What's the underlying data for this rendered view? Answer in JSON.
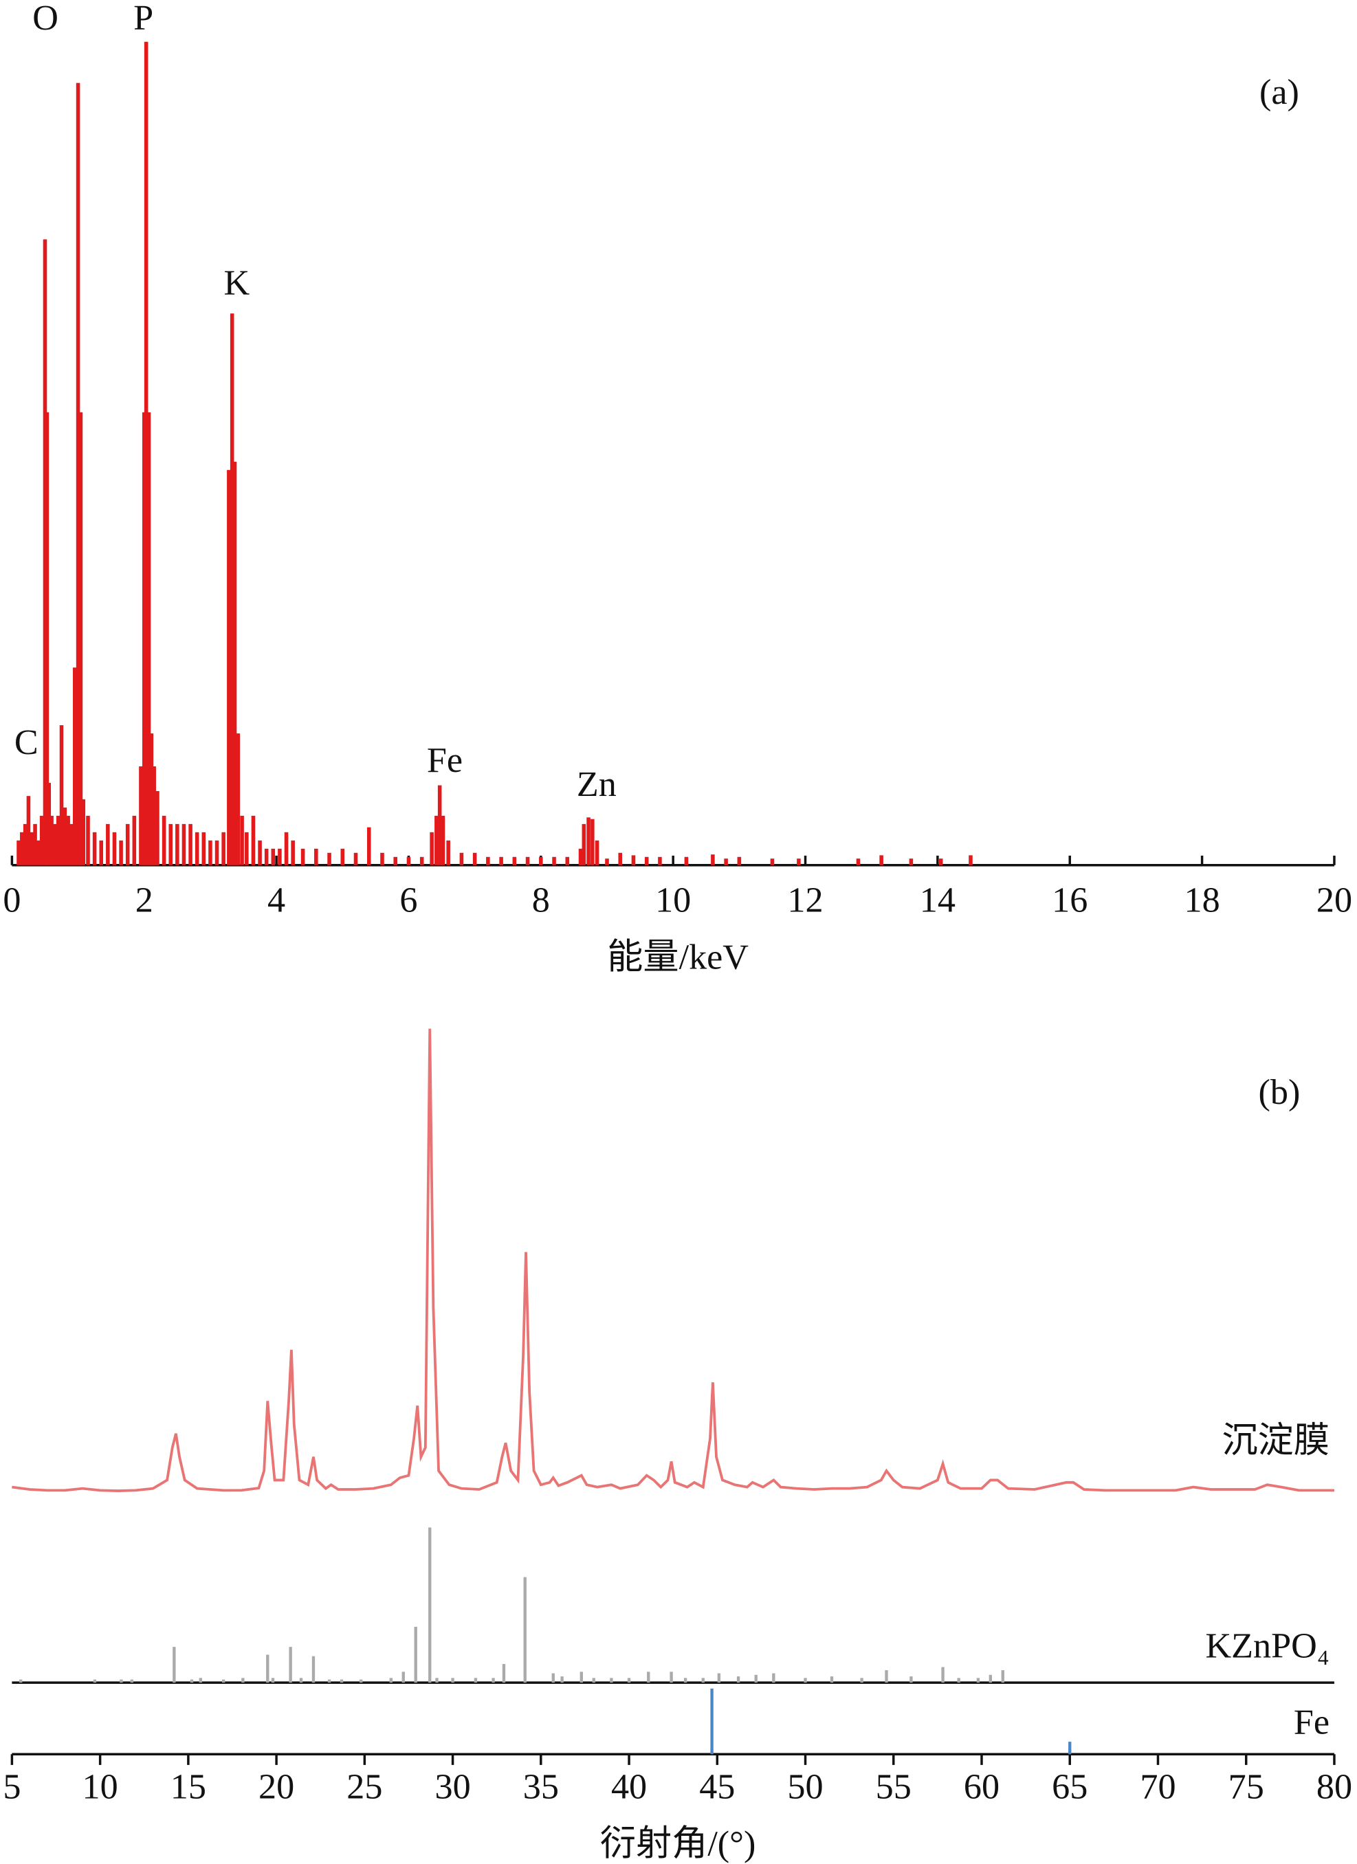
{
  "chart_data": [
    {
      "type": "bar",
      "label": "(a)",
      "xlabel": "能量/keV",
      "annotations": [
        "C",
        "O",
        "P",
        "K",
        "Fe",
        "Zn"
      ],
      "color": "#e31a1c",
      "xlim": [
        0,
        20
      ],
      "ylim": [
        0,
        100
      ],
      "xticks": [
        0,
        2,
        4,
        6,
        8,
        10,
        12,
        14,
        16,
        18,
        20
      ],
      "x": [
        0.1,
        0.15,
        0.2,
        0.25,
        0.3,
        0.35,
        0.4,
        0.45,
        0.5,
        0.53,
        0.56,
        0.6,
        0.65,
        0.7,
        0.75,
        0.8,
        0.85,
        0.9,
        0.95,
        1.0,
        1.04,
        1.08,
        1.15,
        1.25,
        1.35,
        1.45,
        1.55,
        1.65,
        1.75,
        1.85,
        1.95,
        2.0,
        2.03,
        2.07,
        2.11,
        2.15,
        2.2,
        2.3,
        2.4,
        2.5,
        2.6,
        2.7,
        2.8,
        2.9,
        3.0,
        3.1,
        3.2,
        3.28,
        3.33,
        3.37,
        3.42,
        3.48,
        3.55,
        3.65,
        3.75,
        3.85,
        3.95,
        4.05,
        4.15,
        4.25,
        4.4,
        4.6,
        4.8,
        5.0,
        5.2,
        5.4,
        5.6,
        5.8,
        6.0,
        6.2,
        6.35,
        6.42,
        6.47,
        6.52,
        6.6,
        6.8,
        7.0,
        7.2,
        7.4,
        7.6,
        7.8,
        8.0,
        8.2,
        8.4,
        8.6,
        8.65,
        8.72,
        8.78,
        8.85,
        9.0,
        9.2,
        9.4,
        9.6,
        9.8,
        10.2,
        10.6,
        10.8,
        11.0,
        11.5,
        11.9,
        12.8,
        13.15,
        13.6,
        14.05,
        14.5
      ],
      "values": [
        3,
        4,
        5,
        8.4,
        4,
        5,
        3,
        6,
        76,
        55,
        10,
        6,
        5,
        6,
        17,
        7,
        6,
        5,
        24,
        95,
        55,
        8,
        6,
        4,
        3,
        5,
        4,
        3,
        5,
        6,
        12,
        55,
        100,
        55,
        16,
        12,
        9,
        6,
        5,
        5,
        5,
        5,
        4,
        4,
        3,
        3,
        4,
        48,
        67,
        49,
        16,
        6,
        4,
        6,
        3,
        2,
        2,
        2,
        4,
        3,
        2,
        2,
        1.5,
        2,
        1.5,
        4.6,
        1.5,
        1,
        1,
        1,
        4,
        6,
        9.7,
        6,
        3,
        1.5,
        1.5,
        1,
        1,
        1,
        1,
        1,
        1,
        1,
        2,
        5,
        5.8,
        5.6,
        3,
        0.8,
        1.5,
        1.2,
        1,
        1,
        1,
        1.3,
        0.8,
        1,
        0.8,
        0.8,
        0.8,
        1.2,
        0.8,
        0.8,
        1.2
      ]
    },
    {
      "type": "line",
      "label": "(b)",
      "xlim": [
        5,
        80
      ],
      "ylim": [
        0,
        100
      ],
      "series": [
        {
          "name": "沉淀膜",
          "color": "#e87474",
          "x": [
            5,
            6,
            7,
            8,
            9,
            10,
            11,
            12,
            13,
            13.8,
            14.1,
            14.3,
            14.5,
            14.8,
            15.5,
            17,
            18,
            19,
            19.3,
            19.5,
            19.7,
            19.9,
            20.4,
            20.7,
            20.85,
            21.0,
            21.3,
            21.8,
            22.1,
            22.3,
            22.8,
            23.1,
            23.5,
            24.5,
            25.5,
            26.5,
            27,
            27.5,
            27.8,
            28.0,
            28.2,
            28.45,
            28.7,
            28.9,
            29.2,
            29.8,
            30.5,
            31.5,
            32.5,
            32.8,
            33.0,
            33.3,
            33.7,
            34.0,
            34.15,
            34.35,
            34.6,
            35.0,
            35.5,
            35.7,
            36.0,
            36.5,
            37.3,
            37.6,
            38.2,
            39,
            39.5,
            40.5,
            41.0,
            41.4,
            41.8,
            42.2,
            42.4,
            42.6,
            43.3,
            43.7,
            44.2,
            44.6,
            44.75,
            44.95,
            45.3,
            46,
            46.7,
            47.0,
            47.6,
            48.2,
            48.6,
            49.5,
            50.5,
            51.5,
            52.5,
            53.5,
            54.3,
            54.6,
            55.0,
            55.5,
            56.5,
            57.5,
            57.8,
            58.1,
            58.8,
            60,
            60.5,
            60.9,
            61.5,
            63,
            64.8,
            65.2,
            65.8,
            67,
            69,
            71,
            72,
            73,
            75.5,
            76.2,
            77,
            78,
            80
          ],
          "values": [
            1.5,
            1,
            0.8,
            0.8,
            1.2,
            0.8,
            0.7,
            0.8,
            1.2,
            3,
            10,
            13,
            8,
            3,
            1.2,
            0.8,
            0.8,
            1.3,
            5,
            20,
            11,
            3,
            3,
            20,
            31,
            15,
            3,
            2,
            8,
            3,
            1.2,
            2,
            1,
            1,
            1.2,
            2,
            3.5,
            4,
            12,
            19,
            8,
            10,
            100,
            40,
            5,
            2,
            1.2,
            1,
            2.5,
            8,
            11,
            5,
            3,
            30,
            52,
            22,
            5,
            2,
            2.5,
            3.5,
            1.8,
            2.5,
            4,
            2,
            1.5,
            2,
            1.2,
            2,
            4,
            3,
            1.5,
            3,
            7,
            2.5,
            1.5,
            2.5,
            1.5,
            12,
            24,
            8,
            3,
            2,
            1.5,
            2.5,
            1.5,
            3,
            1.5,
            1.2,
            1,
            1.2,
            1.2,
            1.5,
            3,
            5,
            3,
            1.5,
            1.2,
            3,
            6.5,
            2.5,
            1.2,
            1.2,
            3,
            3,
            1.2,
            1,
            2.5,
            2.5,
            1,
            0.8,
            0.8,
            0.8,
            1.5,
            1,
            1,
            2,
            1.5,
            0.8,
            0.8
          ]
        }
      ]
    },
    {
      "type": "stem",
      "name": "KZnPO₄",
      "color": "#aaaaaa",
      "xlim": [
        5,
        80
      ],
      "ylim": [
        0,
        100
      ],
      "x": [
        5.5,
        9.7,
        11.2,
        11.8,
        14.2,
        15.2,
        15.7,
        17,
        18.1,
        19.5,
        19.8,
        20.8,
        21.4,
        22.1,
        23,
        23.7,
        24.8,
        26.5,
        27.2,
        27.9,
        28.7,
        29.1,
        30,
        31.3,
        32.3,
        32.9,
        34.1,
        35.7,
        36.2,
        37.3,
        38,
        39,
        40,
        41.1,
        42.4,
        43.2,
        44.2,
        45.1,
        46.2,
        47.2,
        48.2,
        50,
        51.5,
        53.2,
        54.6,
        56,
        57.8,
        58.7,
        59.8,
        60.5,
        61.2
      ],
      "values": [
        2,
        2,
        2,
        2,
        23,
        2,
        3,
        2,
        3,
        18,
        3,
        23,
        3,
        17,
        2,
        2,
        2,
        3,
        7,
        36,
        100,
        3,
        3,
        3,
        3,
        12,
        68,
        6,
        4,
        7,
        3,
        3,
        3,
        7,
        7,
        3,
        3,
        6,
        4,
        5,
        6,
        3,
        4,
        3,
        8,
        4,
        10,
        3,
        3,
        5,
        8
      ]
    },
    {
      "type": "stem",
      "name": "Fe",
      "color": "#4a86c8",
      "xlim": [
        5,
        80
      ],
      "ylim": [
        0,
        100
      ],
      "xlabel": "衍射角/(°)",
      "xticks": [
        5,
        10,
        15,
        20,
        25,
        30,
        35,
        40,
        45,
        50,
        55,
        60,
        65,
        70,
        75,
        80
      ],
      "x": [
        44.7,
        65.0
      ],
      "values": [
        100,
        19
      ]
    }
  ]
}
